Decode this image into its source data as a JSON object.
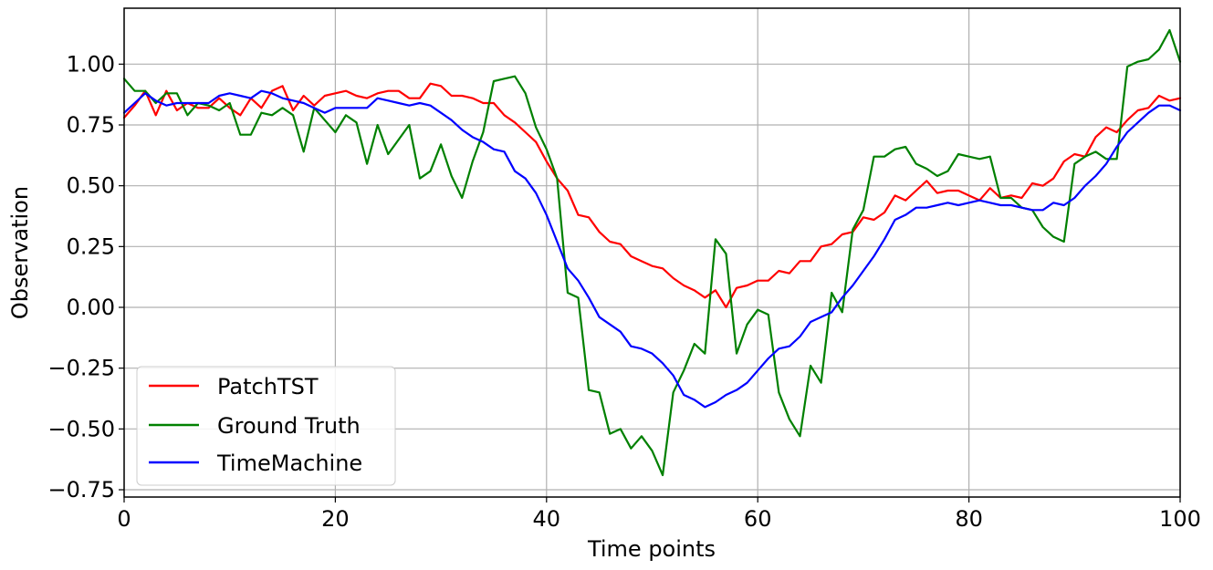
{
  "chart_data": {
    "type": "line",
    "xlabel": "Time points",
    "ylabel": "Observation",
    "xlim": [
      0,
      100
    ],
    "ylim": [
      -0.78,
      1.23
    ],
    "xticks": [
      0,
      20,
      40,
      60,
      80,
      100
    ],
    "xtick_labels": [
      "0",
      "20",
      "40",
      "60",
      "80",
      "100"
    ],
    "yticks": [
      1.0,
      0.75,
      0.5,
      0.25,
      0.0,
      -0.25,
      -0.5,
      -0.75
    ],
    "ytick_labels": [
      "1.00",
      "0.75",
      "0.50",
      "0.25",
      "0.00",
      "−0.25",
      "−0.50",
      "−0.75"
    ],
    "grid": true,
    "legend_position": "lower-left",
    "series": [
      {
        "name": "PatchTST",
        "color": "#ff0000",
        "x": [
          0,
          1,
          2,
          3,
          4,
          5,
          6,
          7,
          8,
          9,
          10,
          11,
          12,
          13,
          14,
          15,
          16,
          17,
          18,
          19,
          20,
          21,
          22,
          23,
          24,
          25,
          26,
          27,
          28,
          29,
          30,
          31,
          32,
          33,
          34,
          35,
          36,
          37,
          38,
          39,
          40,
          41,
          42,
          43,
          44,
          45,
          46,
          47,
          48,
          49,
          50,
          51,
          52,
          53,
          54,
          55,
          56,
          57,
          58,
          59,
          60,
          61,
          62,
          63,
          64,
          65,
          66,
          67,
          68,
          69,
          70,
          71,
          72,
          73,
          74,
          75,
          76,
          77,
          78,
          79,
          80,
          81,
          82,
          83,
          84,
          85,
          86,
          87,
          88,
          89,
          90,
          91,
          92,
          93,
          94,
          95,
          96,
          97,
          98,
          99,
          100
        ],
        "values": [
          0.78,
          0.83,
          0.89,
          0.79,
          0.89,
          0.81,
          0.84,
          0.82,
          0.82,
          0.86,
          0.82,
          0.79,
          0.86,
          0.82,
          0.89,
          0.91,
          0.81,
          0.87,
          0.83,
          0.87,
          0.88,
          0.89,
          0.87,
          0.86,
          0.88,
          0.89,
          0.89,
          0.86,
          0.86,
          0.92,
          0.91,
          0.87,
          0.87,
          0.86,
          0.84,
          0.84,
          0.79,
          0.76,
          0.72,
          0.68,
          0.6,
          0.53,
          0.48,
          0.38,
          0.37,
          0.31,
          0.27,
          0.26,
          0.21,
          0.19,
          0.17,
          0.16,
          0.12,
          0.09,
          0.07,
          0.04,
          0.07,
          0.0,
          0.08,
          0.09,
          0.11,
          0.11,
          0.15,
          0.14,
          0.19,
          0.19,
          0.25,
          0.26,
          0.3,
          0.31,
          0.37,
          0.36,
          0.39,
          0.46,
          0.44,
          0.48,
          0.52,
          0.47,
          0.48,
          0.48,
          0.46,
          0.44,
          0.49,
          0.45,
          0.46,
          0.45,
          0.51,
          0.5,
          0.53,
          0.6,
          0.63,
          0.62,
          0.7,
          0.74,
          0.72,
          0.77,
          0.81,
          0.82,
          0.87,
          0.85,
          0.86
        ]
      },
      {
        "name": "Ground Truth",
        "color": "#008000",
        "x": [
          0,
          1,
          2,
          3,
          4,
          5,
          6,
          7,
          8,
          9,
          10,
          11,
          12,
          13,
          14,
          15,
          16,
          17,
          18,
          19,
          20,
          21,
          22,
          23,
          24,
          25,
          26,
          27,
          28,
          29,
          30,
          31,
          32,
          33,
          34,
          35,
          36,
          37,
          38,
          39,
          40,
          41,
          42,
          43,
          44,
          45,
          46,
          47,
          48,
          49,
          50,
          51,
          52,
          53,
          54,
          55,
          56,
          57,
          58,
          59,
          60,
          61,
          62,
          63,
          64,
          65,
          66,
          67,
          68,
          69,
          70,
          71,
          72,
          73,
          74,
          75,
          76,
          77,
          78,
          79,
          80,
          81,
          82,
          83,
          84,
          85,
          86,
          87,
          88,
          89,
          90,
          91,
          92,
          93,
          94,
          95,
          96,
          97,
          98,
          99,
          100
        ],
        "values": [
          0.94,
          0.89,
          0.89,
          0.84,
          0.88,
          0.88,
          0.79,
          0.84,
          0.83,
          0.81,
          0.84,
          0.71,
          0.71,
          0.8,
          0.79,
          0.82,
          0.79,
          0.64,
          0.82,
          0.77,
          0.72,
          0.79,
          0.76,
          0.59,
          0.75,
          0.63,
          0.69,
          0.75,
          0.53,
          0.56,
          0.67,
          0.54,
          0.45,
          0.6,
          0.72,
          0.93,
          0.94,
          0.95,
          0.88,
          0.74,
          0.65,
          0.53,
          0.06,
          0.04,
          -0.34,
          -0.35,
          -0.52,
          -0.5,
          -0.58,
          -0.53,
          -0.59,
          -0.69,
          -0.35,
          -0.26,
          -0.15,
          -0.19,
          0.28,
          0.22,
          -0.19,
          -0.07,
          -0.01,
          -0.03,
          -0.35,
          -0.46,
          -0.53,
          -0.24,
          -0.31,
          0.06,
          -0.02,
          0.32,
          0.4,
          0.62,
          0.62,
          0.65,
          0.66,
          0.59,
          0.57,
          0.54,
          0.56,
          0.63,
          0.62,
          0.61,
          0.62,
          0.45,
          0.45,
          0.41,
          0.4,
          0.33,
          0.29,
          0.27,
          0.59,
          0.62,
          0.64,
          0.61,
          0.61,
          0.99,
          1.01,
          1.02,
          1.06,
          1.14,
          1.01
        ]
      },
      {
        "name": "TimeMachine",
        "color": "#0000ff",
        "x": [
          0,
          1,
          2,
          3,
          4,
          5,
          6,
          7,
          8,
          9,
          10,
          11,
          12,
          13,
          14,
          15,
          16,
          17,
          18,
          19,
          20,
          21,
          22,
          23,
          24,
          25,
          26,
          27,
          28,
          29,
          30,
          31,
          32,
          33,
          34,
          35,
          36,
          37,
          38,
          39,
          40,
          41,
          42,
          43,
          44,
          45,
          46,
          47,
          48,
          49,
          50,
          51,
          52,
          53,
          54,
          55,
          56,
          57,
          58,
          59,
          60,
          61,
          62,
          63,
          64,
          65,
          66,
          67,
          68,
          69,
          70,
          71,
          72,
          73,
          74,
          75,
          76,
          77,
          78,
          79,
          80,
          81,
          82,
          83,
          84,
          85,
          86,
          87,
          88,
          89,
          90,
          91,
          92,
          93,
          94,
          95,
          96,
          97,
          98,
          99,
          100
        ],
        "values": [
          0.8,
          0.84,
          0.88,
          0.85,
          0.83,
          0.84,
          0.84,
          0.84,
          0.84,
          0.87,
          0.88,
          0.87,
          0.86,
          0.89,
          0.88,
          0.86,
          0.85,
          0.84,
          0.82,
          0.8,
          0.82,
          0.82,
          0.82,
          0.82,
          0.86,
          0.85,
          0.84,
          0.83,
          0.84,
          0.83,
          0.8,
          0.77,
          0.73,
          0.7,
          0.68,
          0.65,
          0.64,
          0.56,
          0.53,
          0.47,
          0.38,
          0.27,
          0.16,
          0.11,
          0.04,
          -0.04,
          -0.07,
          -0.1,
          -0.16,
          -0.17,
          -0.19,
          -0.23,
          -0.28,
          -0.36,
          -0.38,
          -0.41,
          -0.39,
          -0.36,
          -0.34,
          -0.31,
          -0.26,
          -0.21,
          -0.17,
          -0.16,
          -0.12,
          -0.06,
          -0.04,
          -0.02,
          0.04,
          0.09,
          0.15,
          0.21,
          0.28,
          0.36,
          0.38,
          0.41,
          0.41,
          0.42,
          0.43,
          0.42,
          0.43,
          0.44,
          0.43,
          0.42,
          0.42,
          0.41,
          0.4,
          0.4,
          0.43,
          0.42,
          0.45,
          0.5,
          0.54,
          0.59,
          0.66,
          0.72,
          0.76,
          0.8,
          0.83,
          0.83,
          0.81
        ]
      }
    ]
  }
}
